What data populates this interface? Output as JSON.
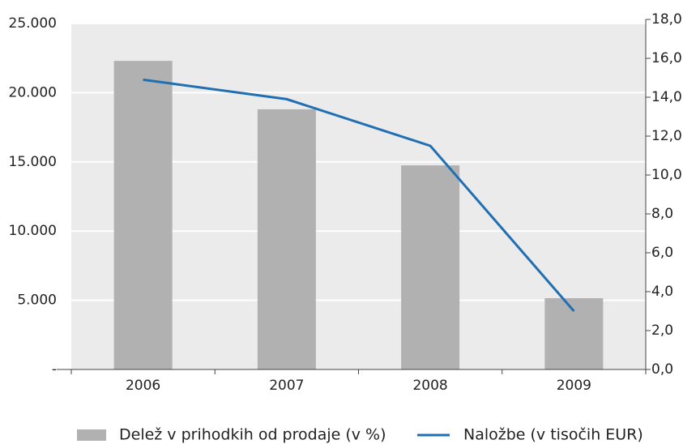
{
  "chart_data": {
    "type": "bar_line",
    "categories": [
      "2006",
      "2007",
      "2008",
      "2009"
    ],
    "series": [
      {
        "name": "Delež v prihodkih od prodaje (v %)",
        "type": "bar",
        "color": "#b1b1b1",
        "axis": "y",
        "values": [
          22300,
          18800,
          14750,
          5150
        ]
      },
      {
        "name": "Naložbe (v tisočih EUR)",
        "type": "line",
        "color": "#1f6fb2",
        "axis": "y2",
        "values": [
          14.9,
          13.9,
          11.5,
          3.0
        ]
      }
    ],
    "ylim": [
      0,
      25000
    ],
    "yticks": [
      {
        "value": 0,
        "label": "-"
      },
      {
        "value": 5000,
        "label": "5.000"
      },
      {
        "value": 10000,
        "label": "10.000"
      },
      {
        "value": 15000,
        "label": "15.000"
      },
      {
        "value": 20000,
        "label": "20.000"
      },
      {
        "value": 25000,
        "label": "25.000"
      }
    ],
    "y2lim": [
      0,
      18
    ],
    "y2ticks": [
      {
        "value": 0,
        "label": "0,0"
      },
      {
        "value": 2,
        "label": "2,0"
      },
      {
        "value": 4,
        "label": "4,0"
      },
      {
        "value": 6,
        "label": "6,0"
      },
      {
        "value": 8,
        "label": "8,0"
      },
      {
        "value": 10,
        "label": "10,0"
      },
      {
        "value": 12,
        "label": "12,0"
      },
      {
        "value": 14,
        "label": "14,0"
      },
      {
        "value": 16,
        "label": "16,0"
      },
      {
        "value": 18,
        "label": "18,0"
      }
    ],
    "grid": true
  }
}
